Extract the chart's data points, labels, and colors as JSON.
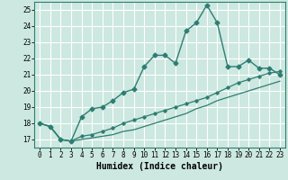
{
  "x": [
    0,
    1,
    2,
    3,
    4,
    5,
    6,
    7,
    8,
    9,
    10,
    11,
    12,
    13,
    14,
    15,
    16,
    17,
    18,
    19,
    20,
    21,
    22,
    23
  ],
  "line1": [
    18.0,
    17.8,
    17.0,
    16.9,
    18.4,
    18.9,
    19.0,
    19.4,
    19.9,
    20.1,
    21.5,
    22.2,
    22.2,
    21.7,
    23.7,
    24.2,
    25.3,
    24.2,
    21.5,
    21.5,
    21.9,
    21.4,
    21.4,
    21.0
  ],
  "line2": [
    18.0,
    17.8,
    17.0,
    16.9,
    17.2,
    17.3,
    17.5,
    17.7,
    18.0,
    18.2,
    18.4,
    18.6,
    18.8,
    19.0,
    19.2,
    19.4,
    19.6,
    19.9,
    20.2,
    20.5,
    20.7,
    20.9,
    21.1,
    21.2
  ],
  "line3": [
    18.0,
    17.8,
    17.0,
    16.9,
    17.0,
    17.1,
    17.2,
    17.3,
    17.5,
    17.6,
    17.8,
    18.0,
    18.2,
    18.4,
    18.6,
    18.9,
    19.1,
    19.4,
    19.6,
    19.8,
    20.0,
    20.2,
    20.4,
    20.6
  ],
  "color": "#2e7d72",
  "bg_color": "#cce8e0",
  "grid_color": "#b0d8cc",
  "xlabel": "Humidex (Indice chaleur)",
  "ylim": [
    16.5,
    25.5
  ],
  "xlim": [
    -0.5,
    23.5
  ],
  "yticks": [
    17,
    18,
    19,
    20,
    21,
    22,
    23,
    24,
    25
  ],
  "xticks": [
    0,
    1,
    2,
    3,
    4,
    5,
    6,
    7,
    8,
    9,
    10,
    11,
    12,
    13,
    14,
    15,
    16,
    17,
    18,
    19,
    20,
    21,
    22,
    23
  ],
  "tick_fontsize": 5.5,
  "label_fontsize": 7.0
}
